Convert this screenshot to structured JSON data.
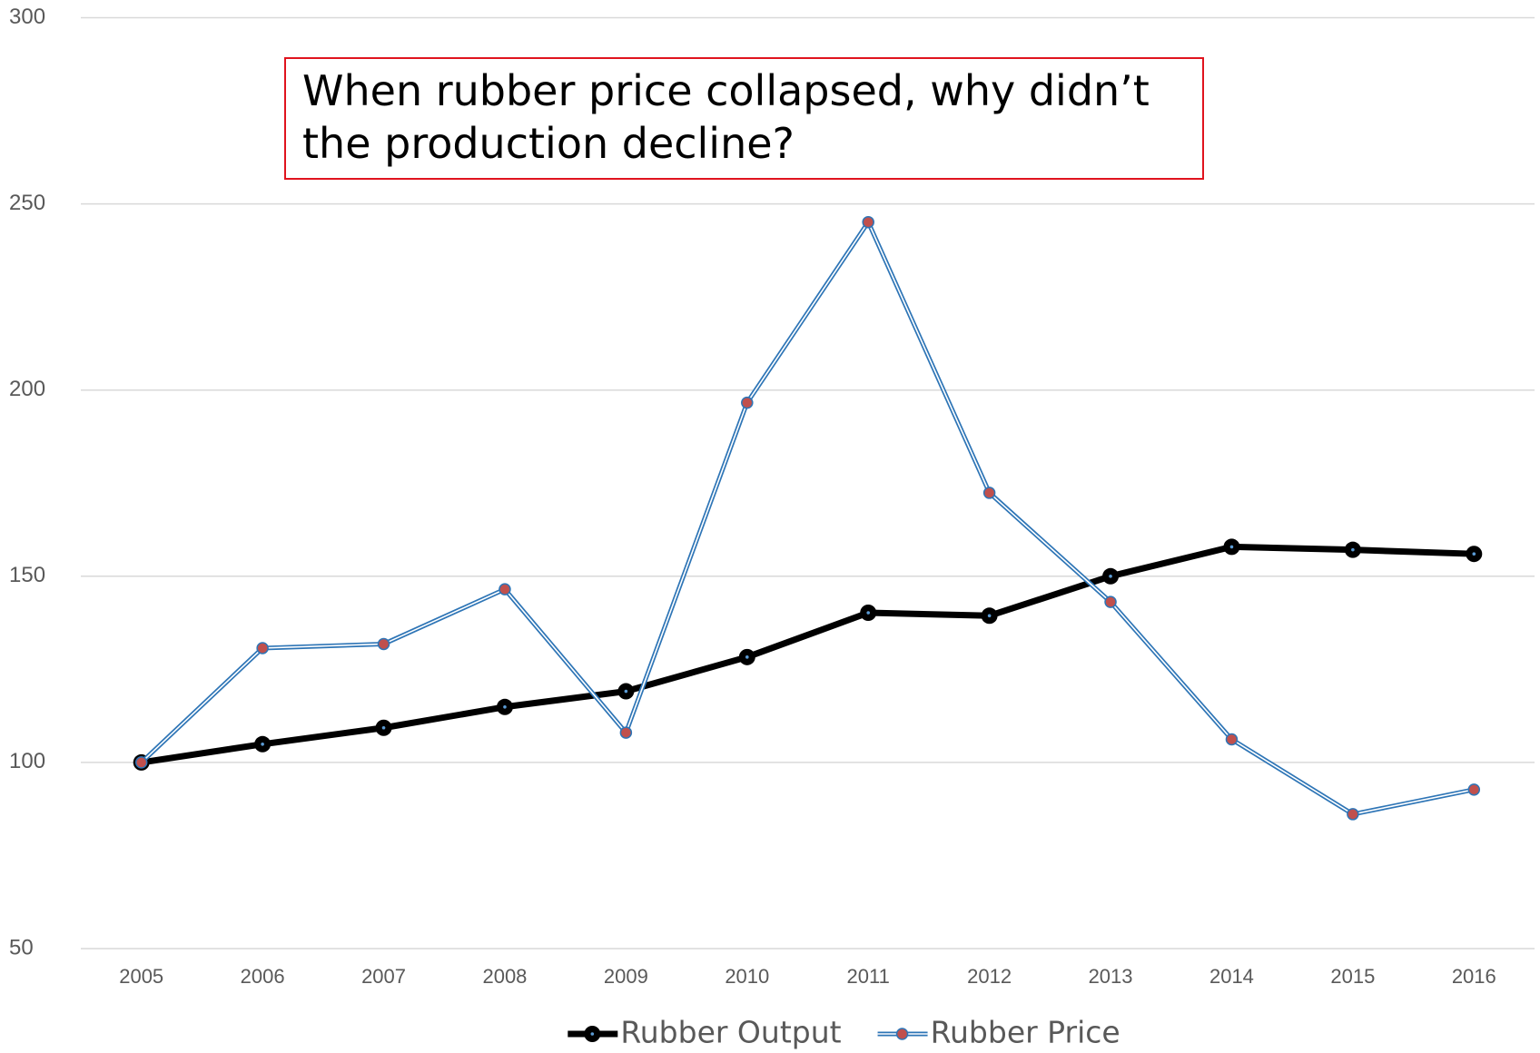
{
  "chart_data": {
    "type": "line",
    "annotation": "When rubber price collapsed, why didn’t the production decline?",
    "categories": [
      "2005",
      "2006",
      "2007",
      "2008",
      "2009",
      "2010",
      "2011",
      "2012",
      "2013",
      "2014",
      "2015",
      "2016"
    ],
    "series": [
      {
        "name": "Rubber Output",
        "color": "#000000",
        "values": [
          100,
          104.9,
          109.3,
          114.9,
          119.1,
          128.3,
          140.2,
          139.4,
          150,
          157.9,
          157.1,
          156
        ]
      },
      {
        "name": "Rubber Price",
        "color": "#2e75b6",
        "marker_color": "#c0504d",
        "values": [
          100,
          130.7,
          131.8,
          146.5,
          108,
          196.6,
          245.1,
          172.4,
          143.1,
          106.2,
          86.1,
          92.7
        ]
      }
    ],
    "ylim": [
      50,
      300
    ],
    "yticks": [
      50,
      100,
      150,
      200,
      250,
      300
    ],
    "grid": true,
    "legend": "bottom"
  }
}
